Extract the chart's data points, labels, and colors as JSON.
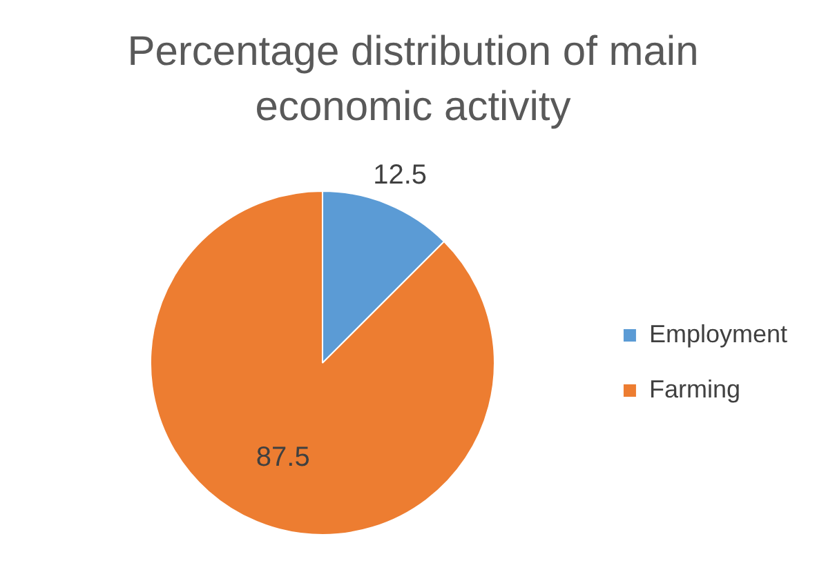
{
  "chart_data": {
    "type": "pie",
    "title": "Percentage distribution of main economic activity",
    "categories": [
      "Employment",
      "Farming"
    ],
    "values": [
      12.5,
      87.5
    ],
    "colors": [
      "#5b9bd5",
      "#ed7d31"
    ],
    "data_labels": true,
    "legend": "right"
  }
}
